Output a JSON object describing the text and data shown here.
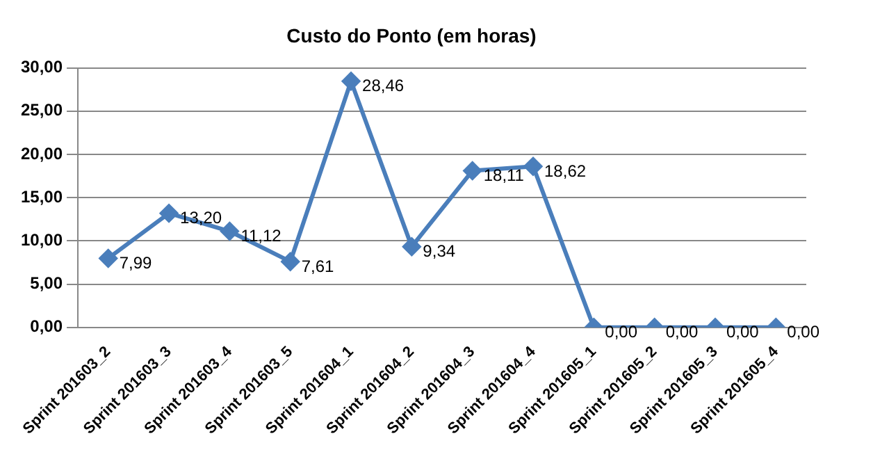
{
  "chart_data": {
    "type": "line",
    "title": "Custo do Ponto (em horas)",
    "categories": [
      "Sprint 201603_2",
      "Sprint 201603_3",
      "Sprint 201603_4",
      "Sprint 201603_5",
      "Sprint 201604_1",
      "Sprint 201604_2",
      "Sprint 201604_3",
      "Sprint 201604_4",
      "Sprint 201605_1",
      "Sprint 201605_2",
      "Sprint 201605_3",
      "Sprint 201605_4"
    ],
    "series": [
      {
        "color": "#4a7ebb",
        "values": [
          7.99,
          13.2,
          11.12,
          7.61,
          28.46,
          9.34,
          18.11,
          18.62,
          0,
          0,
          0,
          0
        ],
        "value_labels": [
          "7,99",
          "13,20",
          "11,12",
          "7,61",
          "28,46",
          "9,34",
          "18,11",
          "18,62",
          "0,00",
          "0,00",
          "0,00",
          "0,00"
        ]
      }
    ],
    "ylim": [
      0,
      30
    ],
    "yticks": [
      {
        "value": 0,
        "label": "0,00"
      },
      {
        "value": 5,
        "label": "5,00"
      },
      {
        "value": 10,
        "label": "10,00"
      },
      {
        "value": 15,
        "label": "15,00"
      },
      {
        "value": 20,
        "label": "20,00"
      },
      {
        "value": 25,
        "label": "25,00"
      },
      {
        "value": 30,
        "label": "30,00"
      }
    ],
    "grid": "y",
    "legend": false,
    "marker": "diamond",
    "line_style": "solid"
  }
}
